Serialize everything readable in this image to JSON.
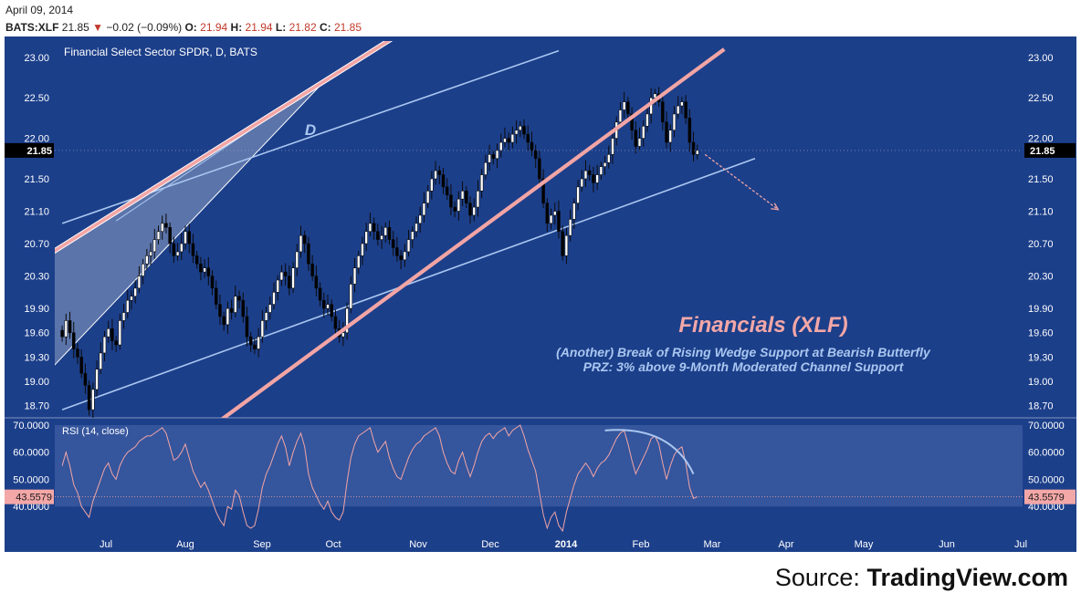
{
  "header": {
    "date": "April 09, 2014",
    "symbol": "BATS:XLF",
    "last": "21.85",
    "change": "−0.02 (−0.09%)",
    "o_label": "O:",
    "o": "21.94",
    "h_label": "H:",
    "h": "21.94",
    "l_label": "L:",
    "l": "21.82",
    "c_label": "C:",
    "c": "21.85"
  },
  "footer": {
    "source_prefix": "Source:",
    "source_name": "TradingView.com"
  },
  "colors": {
    "panel_bg": "#1c3f8a",
    "up_candle": "#ffffff",
    "down_candle": "#000000",
    "wedge_line": "#f2a5a5",
    "channel_line": "#a9c7f0",
    "rsi_line": "#f2a5a5",
    "title_pink": "#f4a7a7",
    "subtitle_blue": "#a9c7f0"
  },
  "chart_data": [
    {
      "type": "candlestick",
      "title": "Financial Select Sector SPDR, D, BATS",
      "ylim": [
        18.55,
        23.2
      ],
      "y_ticks": [
        "23.00",
        "22.50",
        "22.00",
        "21.50",
        "21.10",
        "20.70",
        "20.30",
        "19.90",
        "19.60",
        "19.30",
        "19.00",
        "18.70"
      ],
      "last_price_label": "21.85",
      "x_ticks": [
        "Jul",
        "Aug",
        "Sep",
        "Oct",
        "Nov",
        "Dec",
        "2014",
        "Feb",
        "Mar",
        "Apr",
        "May",
        "Jun",
        "Jul"
      ],
      "close": [
        19.55,
        19.75,
        19.6,
        19.4,
        19.3,
        19.1,
        18.95,
        18.65,
        18.9,
        19.15,
        19.35,
        19.55,
        19.65,
        19.5,
        19.45,
        19.75,
        19.85,
        20.0,
        20.05,
        20.15,
        20.3,
        20.45,
        20.55,
        20.6,
        20.75,
        20.85,
        20.95,
        20.9,
        20.7,
        20.55,
        20.6,
        20.7,
        20.85,
        20.7,
        20.55,
        20.45,
        20.35,
        20.4,
        20.3,
        20.15,
        19.95,
        19.8,
        19.7,
        19.9,
        19.85,
        20.05,
        20.0,
        19.8,
        19.55,
        19.45,
        19.4,
        19.55,
        19.75,
        19.85,
        19.95,
        20.1,
        20.25,
        20.35,
        20.3,
        20.15,
        20.4,
        20.6,
        20.8,
        20.7,
        20.45,
        20.3,
        20.15,
        20.0,
        19.9,
        19.95,
        19.8,
        19.65,
        19.55,
        19.6,
        19.9,
        20.2,
        20.4,
        20.55,
        20.7,
        20.85,
        20.95,
        20.85,
        20.75,
        20.8,
        20.9,
        20.75,
        20.65,
        20.55,
        20.5,
        20.6,
        20.75,
        20.85,
        20.95,
        21.05,
        21.2,
        21.35,
        21.5,
        21.6,
        21.55,
        21.4,
        21.3,
        21.15,
        21.1,
        21.25,
        21.35,
        21.2,
        21.05,
        21.15,
        21.35,
        21.55,
        21.7,
        21.8,
        21.75,
        21.85,
        21.95,
        22.0,
        21.95,
        22.05,
        22.1,
        22.15,
        22.05,
        21.95,
        21.85,
        21.75,
        21.5,
        21.2,
        20.95,
        21.05,
        21.1,
        20.85,
        20.55,
        20.8,
        21.0,
        21.2,
        21.4,
        21.5,
        21.6,
        21.55,
        21.45,
        21.55,
        21.65,
        21.7,
        21.8,
        22.0,
        22.2,
        22.35,
        22.45,
        22.3,
        22.1,
        21.9,
        22.0,
        22.15,
        22.3,
        22.5,
        22.55,
        22.45,
        22.2,
        21.95,
        22.1,
        22.3,
        22.4,
        22.45,
        22.25,
        21.95,
        21.8,
        21.85
      ],
      "channel_upper": [
        [
          0,
          20.95
        ],
        [
          129,
          23.08
        ]
      ],
      "channel_lower": [
        [
          0,
          18.65
        ],
        [
          180,
          21.75
        ]
      ],
      "wedge_support": [
        [
          32,
          18.2
        ],
        [
          172,
          23.1
        ]
      ],
      "wedge_resistance": [
        [
          -4,
          20.55
        ],
        [
          88,
          23.3
        ]
      ],
      "wedge_inner": [
        [
          0,
          19.3
        ],
        [
          52,
          21.9
        ]
      ],
      "labels": [
        "D",
        "Financials (XLF)",
        "(Another) Break of Rising Wedge Support at Bearish Butterfly",
        "PRZ: 3% above 9-Month Moderated Channel Support"
      ]
    },
    {
      "type": "line",
      "title": "RSI (14, close)",
      "ylim": [
        30,
        72
      ],
      "y_ticks": [
        "70.0000",
        "60.0000",
        "50.0000",
        "40.0000"
      ],
      "last_value_label": "43.5579",
      "band": [
        40,
        70
      ],
      "values": [
        55.0,
        60.0,
        55.0,
        48.0,
        45.0,
        40.0,
        38.0,
        36.0,
        42.0,
        46.0,
        50.0,
        54.0,
        56.0,
        52.0,
        50.0,
        55.0,
        58.0,
        60.0,
        61.0,
        62.0,
        64.0,
        65.0,
        66.0,
        66.0,
        67.0,
        68.0,
        69.0,
        67.0,
        62.0,
        57.0,
        58.0,
        60.0,
        63.0,
        58.0,
        53.0,
        50.0,
        47.0,
        49.0,
        46.0,
        42.0,
        38.0,
        35.0,
        33.0,
        40.0,
        39.0,
        46.0,
        44.0,
        38.0,
        33.0,
        32.0,
        33.0,
        39.0,
        47.0,
        52.0,
        55.0,
        59.0,
        63.0,
        66.0,
        62.0,
        55.0,
        60.0,
        64.0,
        67.0,
        62.0,
        52.0,
        47.0,
        44.0,
        41.0,
        39.0,
        42.0,
        38.0,
        36.0,
        35.0,
        38.0,
        49.0,
        58.0,
        63.0,
        66.0,
        67.0,
        68.0,
        69.0,
        64.0,
        60.0,
        62.0,
        64.0,
        58.0,
        54.0,
        51.0,
        50.0,
        54.0,
        58.0,
        61.0,
        63.0,
        64.0,
        66.0,
        67.0,
        68.0,
        69.0,
        66.0,
        60.0,
        56.0,
        53.0,
        52.0,
        57.0,
        60.0,
        55.0,
        51.0,
        55.0,
        60.0,
        64.0,
        66.0,
        67.0,
        65.0,
        67.0,
        68.0,
        69.0,
        66.0,
        68.0,
        69.0,
        70.0,
        66.0,
        61.0,
        57.0,
        53.0,
        45.0,
        37.0,
        32.0,
        36.0,
        38.0,
        33.0,
        31.0,
        38.0,
        43.0,
        48.0,
        52.0,
        54.0,
        56.0,
        54.0,
        51.0,
        54.0,
        56.0,
        57.0,
        59.0,
        62.0,
        65.0,
        67.0,
        68.0,
        63.0,
        57.0,
        52.0,
        55.0,
        58.0,
        61.0,
        65.0,
        66.0,
        63.0,
        56.0,
        50.0,
        55.0,
        59.0,
        61.0,
        62.0,
        56.0,
        47.0,
        43.0,
        43.5579
      ]
    }
  ]
}
